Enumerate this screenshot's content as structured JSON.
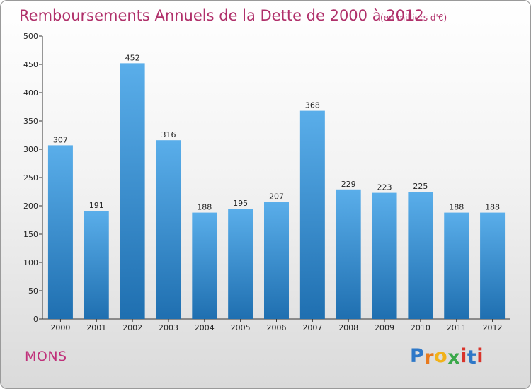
{
  "chart_data": {
    "type": "bar",
    "title": "Remboursements Annuels de la Dette de 2000 à 2012",
    "subtitle": "(en milliers d'€)",
    "xlabel": "",
    "ylabel": "",
    "categories": [
      "2000",
      "2001",
      "2002",
      "2003",
      "2004",
      "2005",
      "2006",
      "2007",
      "2008",
      "2009",
      "2010",
      "2011",
      "2012"
    ],
    "values": [
      307,
      191,
      452,
      316,
      188,
      195,
      207,
      368,
      229,
      223,
      225,
      188,
      188
    ],
    "ylim": [
      0,
      500
    ],
    "yticks": [
      0,
      50,
      100,
      150,
      200,
      250,
      300,
      350,
      400,
      450,
      500
    ],
    "grid": false,
    "colors": {
      "bar_light": "#5aaeea",
      "bar_dark": "#1f6fb0",
      "title": "#b0306a"
    }
  },
  "commune": "MONS",
  "logo": {
    "text": "Proxiti",
    "letters": [
      {
        "ch": "P",
        "color": "#2e78c8"
      },
      {
        "ch": "r",
        "color": "#e87a1e"
      },
      {
        "ch": "o",
        "color": "#f2b21a"
      },
      {
        "ch": "x",
        "color": "#3aa84a"
      },
      {
        "ch": "i",
        "color": "#d9342b"
      },
      {
        "ch": "t",
        "color": "#2e78c8"
      },
      {
        "ch": "i",
        "color": "#d9342b"
      }
    ]
  }
}
